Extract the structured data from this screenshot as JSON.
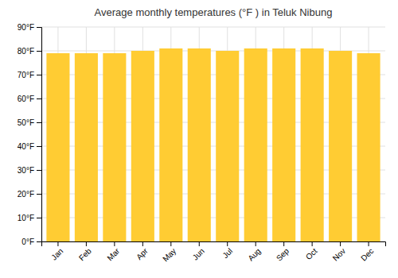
{
  "chart_data": {
    "type": "bar",
    "title": "Average monthly temperatures (°F ) in Teluk Nibung",
    "categories": [
      "Jan",
      "Feb",
      "Mar",
      "Apr",
      "May",
      "Jun",
      "Jul",
      "Aug",
      "Sep",
      "Oct",
      "Nov",
      "Dec"
    ],
    "values": [
      79,
      79,
      79,
      80,
      81,
      81,
      80,
      81,
      81,
      81,
      80,
      79
    ],
    "color": "#FFCC33",
    "ylim": [
      0,
      90
    ],
    "yticks": [
      {
        "value": 0,
        "label": "0°F"
      },
      {
        "value": 10,
        "label": "10°F"
      },
      {
        "value": 20,
        "label": "20°F"
      },
      {
        "value": 30,
        "label": "30°F"
      },
      {
        "value": 40,
        "label": "40°F"
      },
      {
        "value": 50,
        "label": "50°F"
      },
      {
        "value": 60,
        "label": "60°F"
      },
      {
        "value": 70,
        "label": "70°F"
      },
      {
        "value": 80,
        "label": "80°F"
      },
      {
        "value": 90,
        "label": "90°F"
      }
    ],
    "grid": true
  }
}
